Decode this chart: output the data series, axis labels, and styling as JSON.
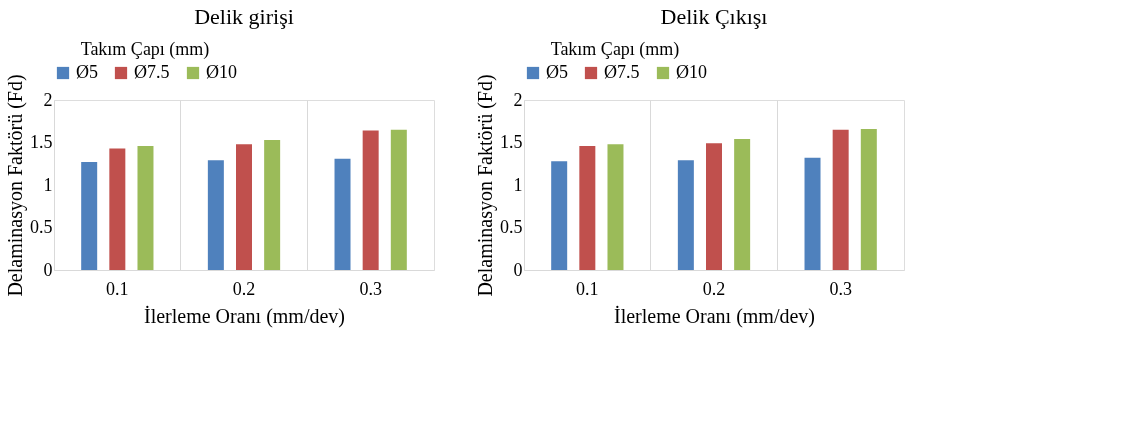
{
  "chart_data": [
    {
      "type": "bar",
      "title": "Delik girişi",
      "legend_title": "Takım Çapı (mm)",
      "xlabel": "İlerleme Oranı (mm/dev)",
      "ylabel": "Delaminasyon Faktörü (Fd)",
      "categories": [
        "0.1",
        "0.2",
        "0.3"
      ],
      "series": [
        {
          "name": "Ø5",
          "color": "#4f81bd",
          "values": [
            1.27,
            1.29,
            1.31
          ]
        },
        {
          "name": "Ø7.5",
          "color": "#c0504d",
          "values": [
            1.43,
            1.48,
            1.64
          ]
        },
        {
          "name": "Ø10",
          "color": "#9bbb59",
          "values": [
            1.46,
            1.53,
            1.65
          ]
        }
      ],
      "ylim": [
        0,
        2
      ],
      "yticks": [
        0,
        0.5,
        1,
        1.5,
        2
      ],
      "grid": "x",
      "legend": "top"
    },
    {
      "type": "bar",
      "title": "Delik Çıkışı",
      "legend_title": "Takım Çapı (mm)",
      "xlabel": "İlerleme Oranı (mm/dev)",
      "ylabel": "Delaminasyon Faktörü (Fd)",
      "categories": [
        "0.1",
        "0.2",
        "0.3"
      ],
      "series": [
        {
          "name": "Ø5",
          "color": "#4f81bd",
          "values": [
            1.28,
            1.29,
            1.32
          ]
        },
        {
          "name": "Ø7.5",
          "color": "#c0504d",
          "values": [
            1.46,
            1.49,
            1.65
          ]
        },
        {
          "name": "Ø10",
          "color": "#9bbb59",
          "values": [
            1.48,
            1.54,
            1.66
          ]
        }
      ],
      "ylim": [
        0,
        2
      ],
      "yticks": [
        0,
        0.5,
        1,
        1.5,
        2
      ],
      "grid": "x",
      "legend": "top"
    }
  ]
}
